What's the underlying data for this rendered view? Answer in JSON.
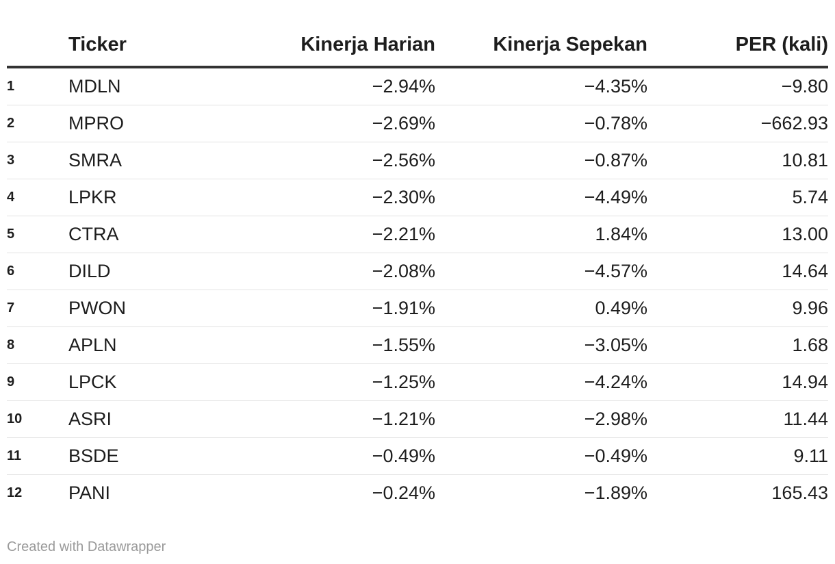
{
  "chart_data": {
    "type": "table",
    "columns": [
      "",
      "Ticker",
      "Kinerja Harian",
      "Kinerja Sepekan",
      "PER (kali)"
    ],
    "rows": [
      {
        "rank": "1",
        "ticker": "MDLN",
        "daily": "−2.94%",
        "weekly": "−4.35%",
        "per": "−9.80"
      },
      {
        "rank": "2",
        "ticker": "MPRO",
        "daily": "−2.69%",
        "weekly": "−0.78%",
        "per": "−662.93"
      },
      {
        "rank": "3",
        "ticker": "SMRA",
        "daily": "−2.56%",
        "weekly": "−0.87%",
        "per": "10.81"
      },
      {
        "rank": "4",
        "ticker": "LPKR",
        "daily": "−2.30%",
        "weekly": "−4.49%",
        "per": "5.74"
      },
      {
        "rank": "5",
        "ticker": "CTRA",
        "daily": "−2.21%",
        "weekly": "1.84%",
        "per": "13.00"
      },
      {
        "rank": "6",
        "ticker": "DILD",
        "daily": "−2.08%",
        "weekly": "−4.57%",
        "per": "14.64"
      },
      {
        "rank": "7",
        "ticker": "PWON",
        "daily": "−1.91%",
        "weekly": "0.49%",
        "per": "9.96"
      },
      {
        "rank": "8",
        "ticker": "APLN",
        "daily": "−1.55%",
        "weekly": "−3.05%",
        "per": "1.68"
      },
      {
        "rank": "9",
        "ticker": "LPCK",
        "daily": "−1.25%",
        "weekly": "−4.24%",
        "per": "14.94"
      },
      {
        "rank": "10",
        "ticker": "ASRI",
        "daily": "−1.21%",
        "weekly": "−2.98%",
        "per": "11.44"
      },
      {
        "rank": "11",
        "ticker": "BSDE",
        "daily": "−0.49%",
        "weekly": "−0.49%",
        "per": "9.11"
      },
      {
        "rank": "12",
        "ticker": "PANI",
        "daily": "−0.24%",
        "weekly": "−1.89%",
        "per": "165.43"
      }
    ]
  },
  "footer": "Created with Datawrapper"
}
